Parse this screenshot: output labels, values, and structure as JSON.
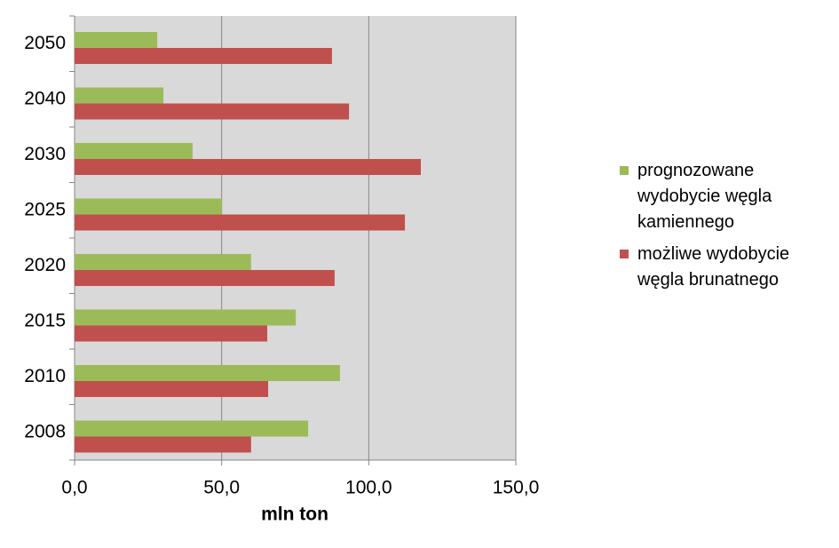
{
  "chart_data": {
    "type": "hbar",
    "categories": [
      "2008",
      "2010",
      "2015",
      "2020",
      "2025",
      "2030",
      "2040",
      "2050"
    ],
    "series": [
      {
        "name": "prognozowane wydobycie węgla kamiennego",
        "color": "#9bbb59",
        "values": [
          79.4,
          90.2,
          75.2,
          60.0,
          50.1,
          40.1,
          30.2,
          28.1
        ]
      },
      {
        "name": "możliwe wydobycie węgla brunatnego",
        "color": "#c0504d",
        "values": [
          60.0,
          65.8,
          65.5,
          88.4,
          112.3,
          117.7,
          93.3,
          87.5
        ]
      }
    ],
    "xlabel": "mln ton",
    "xlim": [
      0,
      150
    ],
    "xticks": [
      {
        "value": 0,
        "label": "0,0"
      },
      {
        "value": 50,
        "label": "50,0"
      },
      {
        "value": 100,
        "label": "100,0"
      },
      {
        "value": 150,
        "label": "150,0"
      }
    ],
    "grid": true,
    "legend": "right"
  }
}
